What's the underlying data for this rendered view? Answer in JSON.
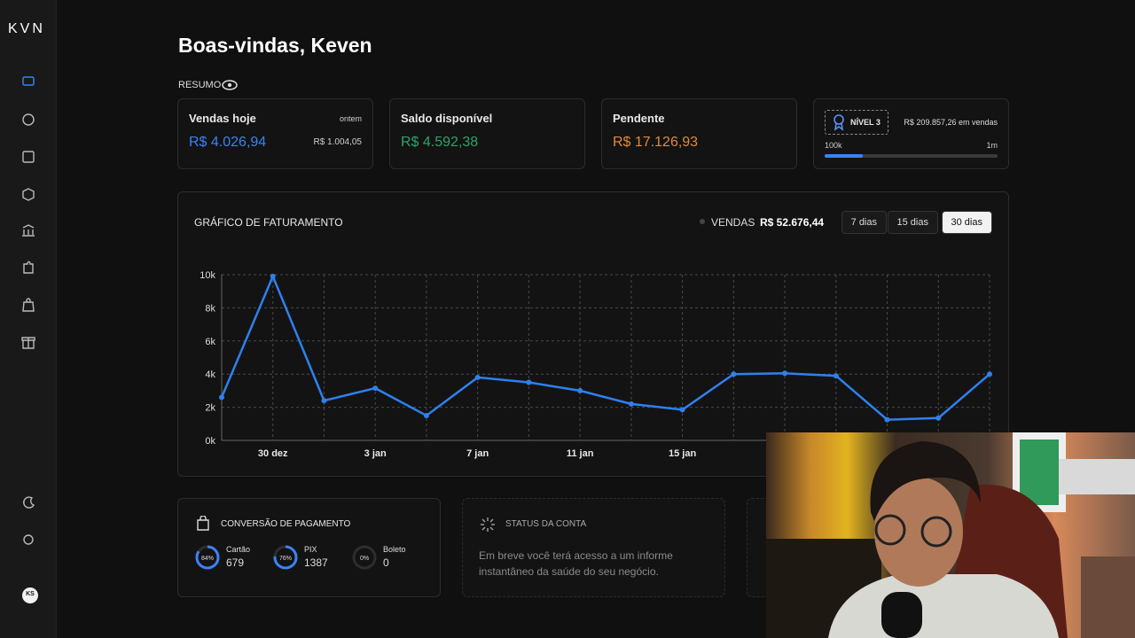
{
  "sidebar": {
    "logo": "KVN",
    "avatar": "KS"
  },
  "header": {
    "title": "Boas-vindas, Keven",
    "section_label": "RESUMO"
  },
  "summary_cards": [
    {
      "label": "Vendas hoje",
      "value": "R$ 4.026,94",
      "side_label": "ontem",
      "side_value": "R$ 1.004,05"
    },
    {
      "label": "Saldo disponível",
      "value": "R$ 4.592,38"
    },
    {
      "label": "Pendente",
      "value": "R$ 17.126,93"
    }
  ],
  "level_card": {
    "level": "NÍVEL 3",
    "sales": "R$ 209.857,26 em vendas",
    "min_label": "100k",
    "max_label": "1m",
    "progress": 22
  },
  "chart_data": {
    "type": "line",
    "title": "GRÁFICO DE FATURAMENTO",
    "total_label": "R$ 52.676,44",
    "ranges": [
      "7 dias",
      "15 dias",
      "30 dias"
    ],
    "selected_range": 2,
    "categories": [
      null,
      "30 dez",
      null,
      "3 jan",
      null,
      "7 jan",
      null,
      "11 jan",
      null,
      "15 jan",
      null,
      null,
      null,
      null,
      null,
      null
    ],
    "series": [
      {
        "name": "VENDAS",
        "color": "#2f80ed",
        "values": [
          2600,
          9900,
          2400,
          3150,
          1500,
          3800,
          3500,
          3000,
          2200,
          1850,
          4000,
          4050,
          3900,
          1250,
          1350,
          4000
        ]
      }
    ],
    "ylim": [
      0,
      10000
    ],
    "yticks": [
      {
        "value": 0,
        "label": "0k"
      },
      {
        "value": 2000,
        "label": "2k"
      },
      {
        "value": 4000,
        "label": "4k"
      },
      {
        "value": 6000,
        "label": "6k"
      },
      {
        "value": 8000,
        "label": "8k"
      },
      {
        "value": 10000,
        "label": "10k"
      }
    ],
    "grid": true
  },
  "conversion": {
    "title": "CONVERSÃO DE PAGAMENTO",
    "items": [
      {
        "name": "Cartão",
        "count": 679,
        "percent": 84,
        "percent_label": "84%"
      },
      {
        "name": "PIX",
        "count": 1387,
        "percent": 76,
        "percent_label": "76%"
      },
      {
        "name": "Boleto",
        "count": 0,
        "percent": 0,
        "percent_label": "0%"
      }
    ]
  },
  "status": {
    "title": "STATUS DA CONTA",
    "text": "Em breve você terá acesso a um informe instantâneo da saúde do seu negócio."
  }
}
